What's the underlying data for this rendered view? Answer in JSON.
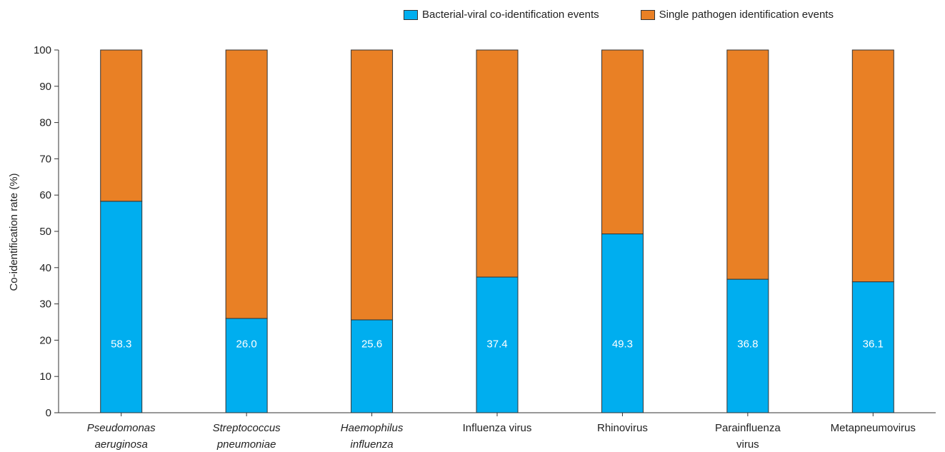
{
  "chart_data": {
    "type": "bar",
    "stacked": true,
    "title": "",
    "xlabel": "",
    "ylabel": "Co-identification rate (%)",
    "ylim": [
      0,
      100
    ],
    "yticks": [
      0,
      10,
      20,
      30,
      40,
      50,
      60,
      70,
      80,
      90,
      100
    ],
    "grid": false,
    "legend_position": "top-right",
    "categories": [
      {
        "line1": "Pseudomonas",
        "line2": "aeruginosa",
        "italic": true
      },
      {
        "line1": "Streptococcus",
        "line2": "pneumoniae",
        "italic": true
      },
      {
        "line1": "Haemophilus",
        "line2": "influenza",
        "italic": true
      },
      {
        "line1": "Influenza virus",
        "line2": "",
        "italic": false
      },
      {
        "line1": "Rhinovirus",
        "line2": "",
        "italic": false
      },
      {
        "line1": "Parainfluenza",
        "line2": "virus",
        "italic": false
      },
      {
        "line1": "Metapneumovirus",
        "line2": "",
        "italic": false
      }
    ],
    "series": [
      {
        "name": "Bacterial-viral co-identification events",
        "color": "#00aeef",
        "values": [
          58.3,
          26.0,
          25.6,
          37.4,
          49.3,
          36.8,
          36.1
        ]
      },
      {
        "name": "Single pathogen identification events",
        "color": "#e98025",
        "values": [
          41.7,
          74.0,
          74.4,
          62.6,
          50.7,
          63.2,
          63.9
        ]
      }
    ],
    "data_labels": [
      "58.3",
      "26.0",
      "25.6",
      "37.4",
      "49.3",
      "36.8",
      "36.1"
    ]
  }
}
